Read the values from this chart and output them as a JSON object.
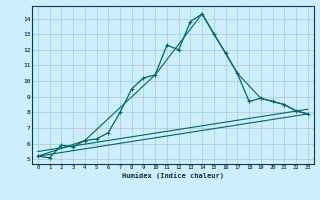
{
  "xlabel": "Humidex (Indice chaleur)",
  "bg_color": "#cceeff",
  "grid_color": "#b0c8c8",
  "line_color": "#006666",
  "xlim": [
    -0.5,
    23.5
  ],
  "ylim": [
    4.7,
    14.8
  ],
  "yticks": [
    5,
    6,
    7,
    8,
    9,
    10,
    11,
    12,
    13,
    14
  ],
  "xticks": [
    0,
    1,
    2,
    3,
    4,
    5,
    6,
    7,
    8,
    9,
    10,
    11,
    12,
    13,
    14,
    15,
    16,
    17,
    18,
    19,
    20,
    21,
    22,
    23
  ],
  "series1_x": [
    0,
    1,
    2,
    3,
    4,
    5,
    6,
    7,
    8,
    9,
    10,
    11,
    12,
    13,
    14,
    15,
    16,
    17,
    18,
    19,
    20,
    21,
    22,
    23
  ],
  "series1_y": [
    5.2,
    5.1,
    5.9,
    5.8,
    6.2,
    6.3,
    6.7,
    8.0,
    9.5,
    10.2,
    10.4,
    12.3,
    12.0,
    13.8,
    14.3,
    13.0,
    11.8,
    10.5,
    8.7,
    8.9,
    8.7,
    8.5,
    8.1,
    7.9
  ],
  "series2_x": [
    0,
    4,
    10,
    14,
    17,
    19,
    20,
    21,
    22,
    23
  ],
  "series2_y": [
    5.2,
    6.2,
    10.4,
    14.3,
    10.5,
    8.9,
    8.7,
    8.5,
    8.1,
    7.9
  ],
  "series3_x": [
    0,
    23
  ],
  "series3_y": [
    5.2,
    7.9
  ],
  "series4_x": [
    0,
    23
  ],
  "series4_y": [
    5.5,
    8.2
  ]
}
